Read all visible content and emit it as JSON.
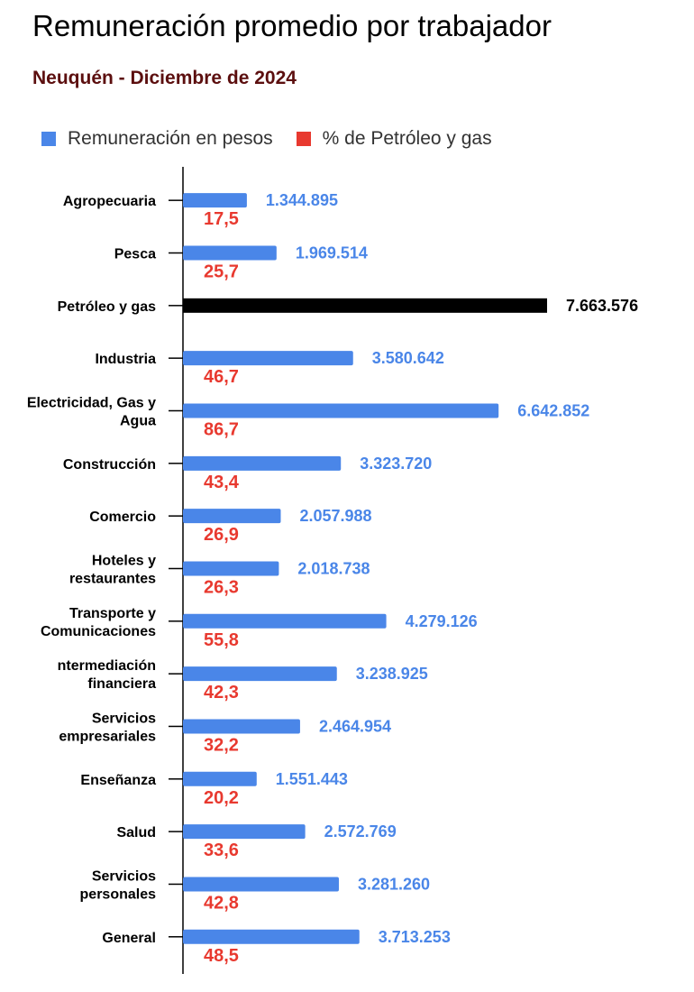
{
  "chart_data": {
    "type": "bar",
    "orientation": "horizontal",
    "title": "Remuneración promedio por trabajador",
    "subtitle": "Neuquén - Diciembre de 2024",
    "colors": {
      "remuneracion": "#4a86e8",
      "porcentaje": "#e8392f",
      "highlight": "#000000",
      "subtitle": "#5c0f0f"
    },
    "legend": {
      "placement": "top-left",
      "items": [
        {
          "label": "Remuneración en pesos",
          "color": "#4a86e8"
        },
        {
          "label": "% de Petróleo y gas",
          "color": "#e8392f"
        }
      ]
    },
    "categories": [
      [
        "Agropecuaria"
      ],
      [
        "Pesca"
      ],
      [
        "Petróleo y gas"
      ],
      [
        "Industria"
      ],
      [
        "Electricidad, Gas y",
        "Agua"
      ],
      [
        "Construcción"
      ],
      [
        "Comercio"
      ],
      [
        "Hoteles y",
        "restaurantes"
      ],
      [
        "Transporte y",
        "Comunicaciones"
      ],
      [
        "ntermediación",
        "financiera"
      ],
      [
        "Servicios",
        "empresariales"
      ],
      [
        "Enseñanza"
      ],
      [
        "Salud"
      ],
      [
        "Servicios",
        "personales"
      ],
      [
        "General"
      ]
    ],
    "series": [
      {
        "name": "Remuneración en pesos",
        "values": [
          1344895,
          1969514,
          7663576,
          3580642,
          6642852,
          3323720,
          2057988,
          2018738,
          4279126,
          3238925,
          2464954,
          1551443,
          2572769,
          3281260,
          3713253
        ],
        "labels": [
          "1.344.895",
          "1.969.514",
          "7.663.576",
          "3.580.642",
          "6.642.852",
          "3.323.720",
          "2.057.988",
          "2.018.738",
          "4.279.126",
          "3.238.925",
          "2.464.954",
          "1.551.443",
          "2.572.769",
          "3.281.260",
          "3.713.253"
        ]
      },
      {
        "name": "% de Petróleo y gas",
        "values": [
          17.5,
          25.7,
          null,
          46.7,
          86.7,
          43.4,
          26.9,
          26.3,
          55.8,
          42.3,
          32.2,
          20.2,
          33.6,
          42.8,
          48.5
        ],
        "labels": [
          "17,5",
          "25,7",
          "",
          "46,7",
          "86,7",
          "43,4",
          "26,9",
          "26,3",
          "55,8",
          "42,3",
          "32,2",
          "20,2",
          "33,6",
          "42,8",
          "48,5"
        ]
      }
    ],
    "highlight_index": 2,
    "xlim": [
      0,
      7663576
    ],
    "grid": false
  }
}
